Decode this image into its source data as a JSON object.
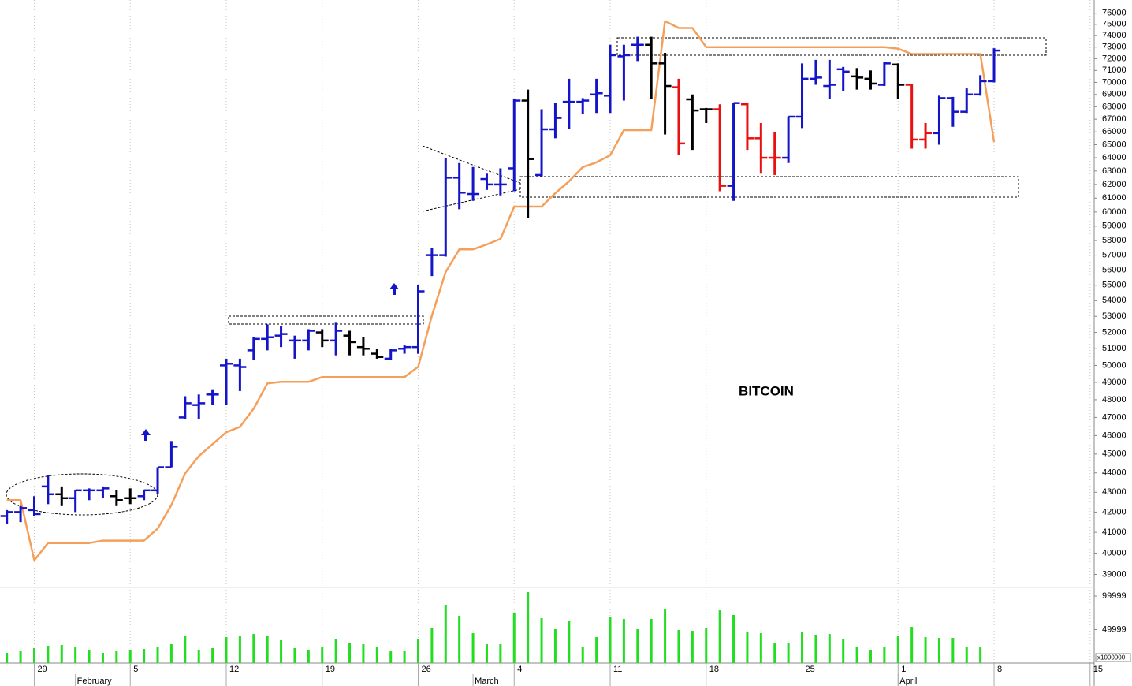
{
  "chart_data": {
    "type": "ohlc",
    "annotation": "BITCOIN",
    "log_scale": true,
    "grid": "x",
    "x": [
      0,
      1,
      2,
      3,
      4,
      5,
      6,
      7,
      8,
      9,
      10,
      11,
      12,
      13,
      14,
      15,
      16,
      17,
      18,
      19,
      20,
      21,
      22,
      23,
      24,
      25,
      26,
      27,
      28,
      29,
      30,
      31,
      32,
      33,
      34,
      35,
      36,
      37,
      38,
      39,
      40,
      41,
      42,
      43,
      44,
      45,
      46,
      47,
      48,
      49,
      50,
      51,
      52,
      53,
      54,
      55,
      56,
      57,
      58,
      59,
      60,
      61,
      62,
      63,
      64,
      65,
      66,
      67,
      68,
      69,
      70,
      71,
      72
    ],
    "open": [
      41800,
      42000,
      42100,
      43300,
      42900,
      42700,
      43100,
      43100,
      42800,
      42700,
      42800,
      43100,
      44300,
      47000,
      47700,
      48300,
      50000,
      50000,
      50900,
      51600,
      51800,
      51500,
      51500,
      52000,
      51500,
      51800,
      51100,
      50700,
      50400,
      51000,
      51100,
      57000,
      57000,
      62500,
      61300,
      62400,
      62000,
      63200,
      68500,
      62700,
      66200,
      68400,
      68400,
      69000,
      68900,
      72200,
      73200,
      73200,
      71600,
      69600,
      68600,
      67800,
      67800,
      61900,
      68200,
      65500,
      64000,
      64000,
      67200,
      70300,
      69700,
      71100,
      70500,
      70300,
      69800,
      71500,
      69800,
      65400,
      65900,
      68700,
      67600,
      69000,
      70100
    ],
    "high": [
      42100,
      42300,
      42800,
      43900,
      43300,
      43100,
      43200,
      43300,
      43100,
      43200,
      43100,
      44300,
      45700,
      48200,
      48300,
      48600,
      50400,
      50400,
      51700,
      52500,
      52400,
      51800,
      52200,
      52200,
      52600,
      52100,
      51700,
      51000,
      51000,
      51200,
      55000,
      57500,
      64000,
      63600,
      63300,
      62800,
      63200,
      68600,
      69400,
      67800,
      68300,
      70300,
      68700,
      70300,
      73200,
      73200,
      73900,
      73900,
      72500,
      70300,
      69000,
      67900,
      68200,
      68300,
      68300,
      66700,
      66000,
      67200,
      71600,
      71900,
      71900,
      71300,
      71200,
      71000,
      71700,
      71600,
      69900,
      66700,
      68900,
      68800,
      69500,
      70600,
      72900
    ],
    "low": [
      41400,
      41500,
      41800,
      42400,
      42300,
      42000,
      42600,
      42700,
      42300,
      42400,
      42600,
      42900,
      44300,
      46900,
      46900,
      47700,
      47700,
      48500,
      50300,
      50900,
      51100,
      50400,
      50900,
      51100,
      50600,
      50600,
      50600,
      50400,
      50300,
      50700,
      50700,
      55600,
      56900,
      60200,
      60800,
      61600,
      61200,
      61500,
      59600,
      62600,
      65500,
      66200,
      67400,
      67500,
      67500,
      68500,
      71800,
      68600,
      65800,
      64200,
      64600,
      66700,
      61500,
      60800,
      64600,
      62800,
      62700,
      63600,
      66300,
      69800,
      68600,
      69300,
      69400,
      69400,
      69700,
      68600,
      64700,
      64700,
      65000,
      66400,
      67500,
      68900,
      70000
    ],
    "close": [
      42000,
      42200,
      41900,
      42900,
      42700,
      43100,
      43100,
      43200,
      42600,
      42700,
      43100,
      44300,
      45400,
      47800,
      47800,
      48300,
      50100,
      49900,
      51600,
      51700,
      51900,
      51500,
      52100,
      51500,
      52100,
      51400,
      51000,
      50500,
      50900,
      51100,
      54600,
      57000,
      62500,
      61400,
      61300,
      62000,
      62000,
      68500,
      63900,
      66200,
      67100,
      68400,
      68500,
      69100,
      72300,
      72300,
      73200,
      71600,
      69700,
      65100,
      67700,
      67800,
      61900,
      68300,
      65500,
      64000,
      64000,
      67200,
      70300,
      70400,
      69800,
      70900,
      70400,
      69900,
      71600,
      69800,
      65400,
      65900,
      68700,
      67600,
      69000,
      70100,
      72700
    ],
    "bar_colors": [
      "#1414c8",
      "#1414c8",
      "#1414c8",
      "#1414c8",
      "#000000",
      "#1414c8",
      "#1414c8",
      "#1414c8",
      "#000000",
      "#000000",
      "#1414c8",
      "#1414c8",
      "#1414c8",
      "#1414c8",
      "#1414c8",
      "#1414c8",
      "#1414c8",
      "#1414c8",
      "#1414c8",
      "#1414c8",
      "#1414c8",
      "#1414c8",
      "#1414c8",
      "#000000",
      "#1414c8",
      "#000000",
      "#000000",
      "#000000",
      "#1414c8",
      "#1414c8",
      "#1414c8",
      "#1414c8",
      "#1414c8",
      "#1414c8",
      "#1414c8",
      "#1414c8",
      "#1414c8",
      "#1414c8",
      "#000000",
      "#1414c8",
      "#1414c8",
      "#1414c8",
      "#1414c8",
      "#1414c8",
      "#1414c8",
      "#1414c8",
      "#1414c8",
      "#000000",
      "#000000",
      "#e81010",
      "#000000",
      "#000000",
      "#e81010",
      "#1414c8",
      "#e81010",
      "#e81010",
      "#e81010",
      "#1414c8",
      "#1414c8",
      "#1414c8",
      "#1414c8",
      "#1414c8",
      "#000000",
      "#000000",
      "#1414c8",
      "#000000",
      "#e81010",
      "#e81010",
      "#1414c8",
      "#1414c8",
      "#1414c8",
      "#1414c8",
      "#1414c8"
    ],
    "line": {
      "color": "#f5a05a",
      "values": [
        42600,
        42600,
        39660,
        40480,
        40480,
        40480,
        40480,
        40600,
        40600,
        40600,
        40600,
        41180,
        42350,
        43970,
        44890,
        45530,
        46180,
        46480,
        47490,
        48940,
        49030,
        49030,
        49030,
        49310,
        49310,
        49310,
        49310,
        49310,
        49310,
        49310,
        49920,
        53050,
        55870,
        57400,
        57400,
        57730,
        58110,
        60390,
        60390,
        60390,
        61360,
        62230,
        63290,
        63650,
        64190,
        66140,
        66140,
        66140,
        75290,
        74670,
        74670,
        73000,
        73000,
        73000,
        73000,
        73000,
        73000,
        73000,
        73000,
        73000,
        73000,
        73000,
        73000,
        73000,
        73000,
        72860,
        72400,
        72400,
        72400,
        72400,
        72400,
        72400,
        65220
      ]
    },
    "ylim": [
      38400,
      77200
    ],
    "yticks": [
      39000,
      40000,
      41000,
      42000,
      43000,
      44000,
      45000,
      46000,
      47000,
      48000,
      49000,
      50000,
      51000,
      52000,
      53000,
      54000,
      55000,
      56000,
      57000,
      58000,
      59000,
      60000,
      61000,
      62000,
      63000,
      64000,
      65000,
      66000,
      67000,
      68000,
      69000,
      70000,
      71000,
      72000,
      73000,
      74000,
      75000,
      76000
    ],
    "xlim": [
      -0.5,
      79.3
    ],
    "xticks": [
      {
        "value": 2,
        "label": "29"
      },
      {
        "value": 9,
        "label": "5"
      },
      {
        "value": 16,
        "label": "12"
      },
      {
        "value": 23,
        "label": "19"
      },
      {
        "value": 30,
        "label": "26"
      },
      {
        "value": 37,
        "label": "4"
      },
      {
        "value": 44,
        "label": "11"
      },
      {
        "value": 51,
        "label": "18"
      },
      {
        "value": 58,
        "label": "25"
      },
      {
        "value": 65,
        "label": "1"
      },
      {
        "value": 72,
        "label": "8"
      },
      {
        "value": 79,
        "label": "15"
      }
    ],
    "month_labels": [
      {
        "value": 5,
        "label": "February"
      },
      {
        "value": 34,
        "label": "March"
      },
      {
        "value": 65,
        "label": "April"
      }
    ],
    "volume": {
      "color": "#22dd22",
      "unit_label": "x1000000",
      "ylim": [
        0,
        113000
      ],
      "yticks": [
        49999,
        99999
      ],
      "values": [
        15300,
        17600,
        22400,
        25900,
        27100,
        23500,
        20000,
        15300,
        17600,
        20000,
        21200,
        23500,
        28200,
        41200,
        20000,
        22400,
        38800,
        41200,
        43500,
        41200,
        34100,
        22400,
        20000,
        23500,
        36500,
        30600,
        28200,
        23500,
        17600,
        18800,
        35300,
        52900,
        87100,
        70600,
        44700,
        28200,
        28200,
        75300,
        105900,
        67100,
        50600,
        62400,
        24700,
        38800,
        69400,
        65900,
        50600,
        65900,
        81200,
        49400,
        48200,
        51800,
        78800,
        71800,
        47100,
        44700,
        29400,
        29400,
        47100,
        42400,
        43500,
        36500,
        24700,
        20000,
        23500,
        41200,
        54100,
        38800,
        37600,
        37600,
        23500,
        23500,
        null
      ]
    }
  }
}
